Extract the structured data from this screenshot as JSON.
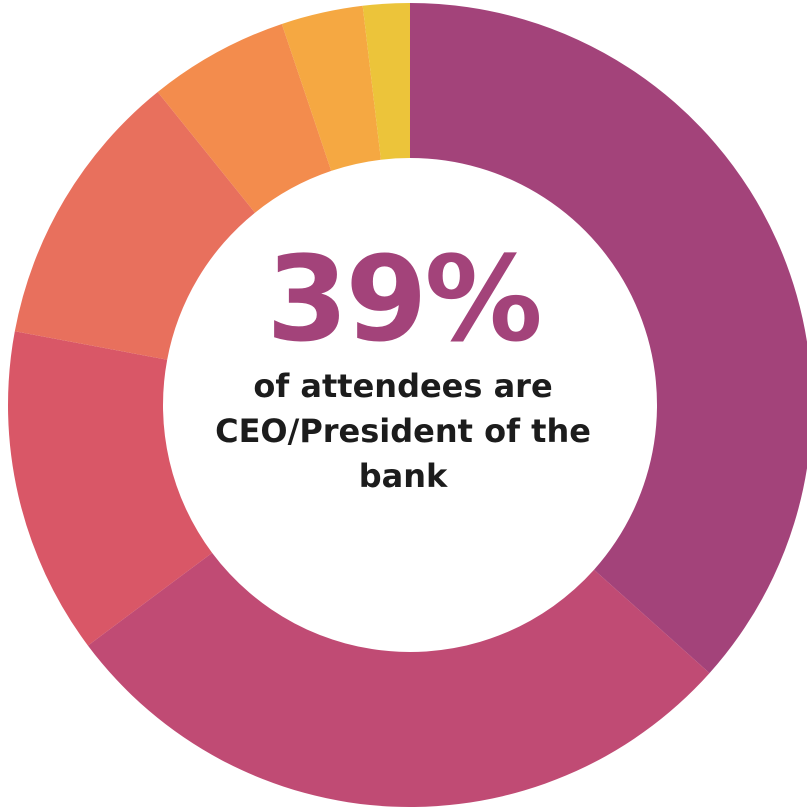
{
  "chart_data": {
    "type": "pie",
    "donut": true,
    "values": [
      39,
      30,
      14,
      12,
      6,
      3.5,
      2
    ],
    "colors": [
      "#a3437a",
      "#c04b74",
      "#d95767",
      "#e8705d",
      "#f38c4d",
      "#f5a842",
      "#ecc43a"
    ],
    "headline": "39%",
    "caption": "of attendees are CEO/President of the bank"
  }
}
